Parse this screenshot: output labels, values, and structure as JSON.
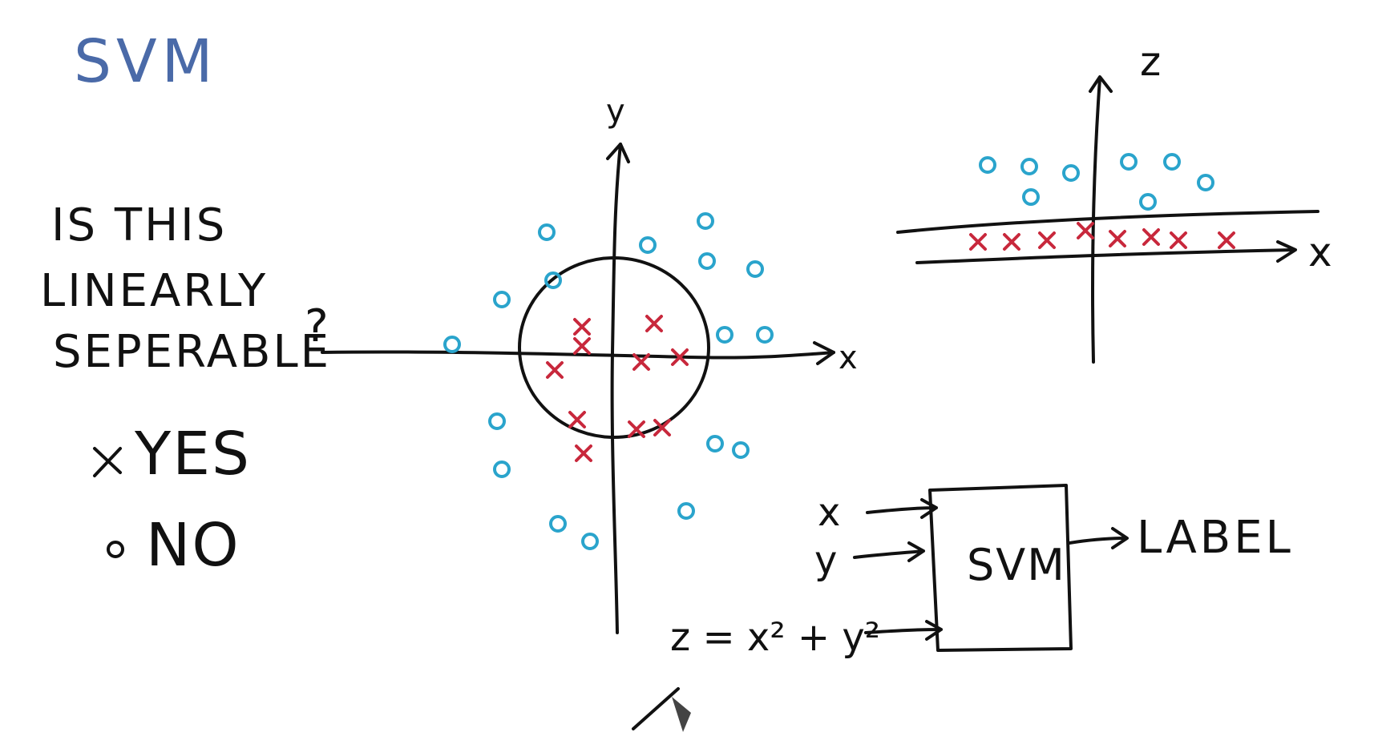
{
  "title": {
    "text": "SVM",
    "color": "#4a6aa8"
  },
  "question": {
    "line1": "IS THIS",
    "line2": "LINEARLY",
    "line3": "SEPERABLE",
    "mark": "?"
  },
  "legend": {
    "yes_label": "YES",
    "no_label": "NO"
  },
  "colors": {
    "x_class": "#c8283c",
    "o_class": "#2aa4cc",
    "ink": "#111111"
  },
  "main_plot": {
    "x_axis_label": "x",
    "y_axis_label": "y"
  },
  "z_plot": {
    "z_axis_label": "z",
    "x_axis_label": "x"
  },
  "svm_block": {
    "input_x": "x",
    "input_y": "y",
    "input_z": "z = x² + y²",
    "box_label": "SVM",
    "output_label": "LABEL"
  }
}
